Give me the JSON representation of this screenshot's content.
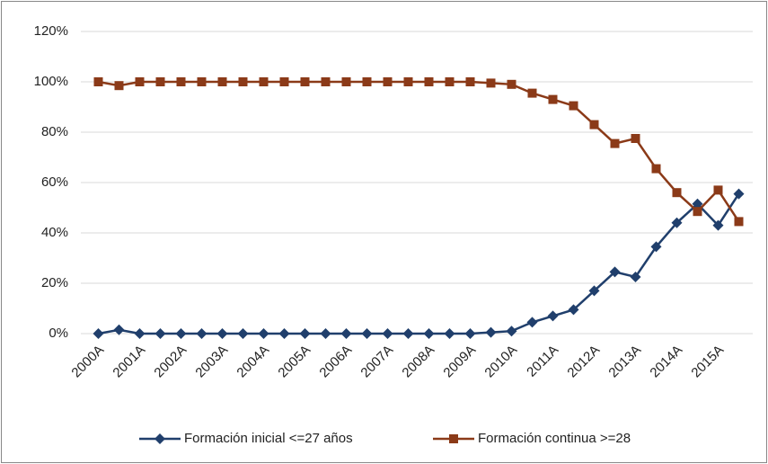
{
  "chart_data": {
    "type": "line",
    "categories": [
      "2000A",
      null,
      "2001A",
      null,
      "2002A",
      null,
      "2003A",
      null,
      "2004A",
      null,
      "2005A",
      null,
      "2006A",
      null,
      "2007A",
      null,
      "2008A",
      null,
      "2009A",
      null,
      "2010A",
      null,
      "2011A",
      null,
      "2012A",
      null,
      "2013A",
      null,
      "2014A",
      null,
      "2015A",
      null
    ],
    "series": [
      {
        "name": "Formación inicial <=27 años",
        "color": "#203f6c",
        "marker": "diamond",
        "values": [
          0,
          1.5,
          0,
          0,
          0,
          0,
          0,
          0,
          0,
          0,
          0,
          0,
          0,
          0,
          0,
          0,
          0,
          0,
          0,
          0.5,
          1,
          4.5,
          7,
          9.5,
          17,
          24.5,
          22.5,
          34.5,
          44,
          51.5,
          43,
          55.5
        ]
      },
      {
        "name": "Formación continua >=28",
        "color": "#8b3a18",
        "marker": "square",
        "values": [
          100,
          98.5,
          100,
          100,
          100,
          100,
          100,
          100,
          100,
          100,
          100,
          100,
          100,
          100,
          100,
          100,
          100,
          100,
          100,
          99.5,
          99,
          95.5,
          93,
          90.5,
          83,
          75.5,
          77.5,
          65.5,
          56,
          48.5,
          57,
          44.5
        ]
      }
    ],
    "ylim": [
      0,
      120
    ],
    "yticks": [
      {
        "value": 0,
        "label": "0%"
      },
      {
        "value": 20,
        "label": "20%"
      },
      {
        "value": 40,
        "label": "40%"
      },
      {
        "value": 60,
        "label": "60%"
      },
      {
        "value": 80,
        "label": "80%"
      },
      {
        "value": 100,
        "label": "100%"
      },
      {
        "value": 120,
        "label": "120%"
      }
    ],
    "grid": true
  }
}
